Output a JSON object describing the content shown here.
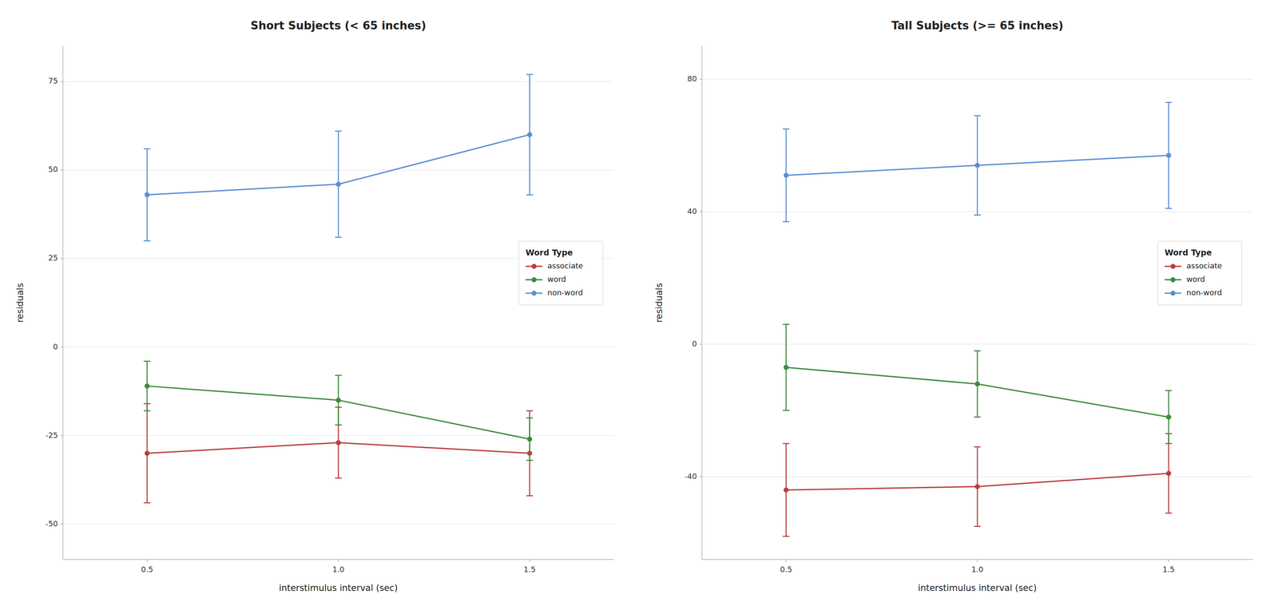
{
  "chart_data": [
    {
      "type": "line",
      "title": "Short Subjects (< 65 inches)",
      "x_label": "interstimulus interval (sec)",
      "y_label": "residuals",
      "legend_title": "Word Type",
      "x": [
        0.5,
        1.0,
        1.5
      ],
      "xlim": [
        0.28,
        1.72
      ],
      "xticks": [
        0.5,
        {
          "value": 1.0,
          "label": "1.0"
        },
        1.5
      ],
      "ylim": [
        -60,
        85
      ],
      "yticks": [
        -50,
        -25,
        0,
        25,
        50,
        75
      ],
      "grid": true,
      "legend": "right",
      "marker": "circle",
      "series": [
        {
          "name": "associate",
          "color": "#B94040",
          "values": [
            -30.0,
            -27.0,
            -30.0
          ],
          "errors": [
            14.0,
            10.0,
            12.0
          ]
        },
        {
          "name": "word",
          "color": "#3D8B3D",
          "values": [
            -11.0,
            -15.0,
            -26.0
          ],
          "errors": [
            7.0,
            7.0,
            6.0
          ]
        },
        {
          "name": "non-word",
          "color": "#5B8FD4",
          "values": [
            43.0,
            46.0,
            60.0
          ],
          "errors": [
            13.0,
            15.0,
            17.0
          ]
        }
      ]
    },
    {
      "type": "line",
      "title": "Tall Subjects (>= 65 inches)",
      "x_label": "interstimulus interval (sec)",
      "y_label": "residuals",
      "legend_title": "Word Type",
      "x": [
        0.5,
        1.0,
        1.5
      ],
      "xlim": [
        0.28,
        1.72
      ],
      "xticks": [
        0.5,
        {
          "value": 1.0,
          "label": "1.0"
        },
        1.5
      ],
      "ylim": [
        -65,
        90
      ],
      "yticks": [
        -40,
        0,
        40,
        80
      ],
      "grid": true,
      "legend": "right",
      "marker": "circle",
      "series": [
        {
          "name": "associate",
          "color": "#B94040",
          "values": [
            -44.0,
            -43.0,
            -39.0
          ],
          "errors": [
            14.0,
            12.0,
            12.0
          ]
        },
        {
          "name": "word",
          "color": "#3D8B3D",
          "values": [
            -7.0,
            -12.0,
            -22.0
          ],
          "errors": [
            13.0,
            10.0,
            8.0
          ]
        },
        {
          "name": "non-word",
          "color": "#5B8FD4",
          "values": [
            51.0,
            54.0,
            57.0
          ],
          "errors": [
            14.0,
            15.0,
            16.0
          ]
        }
      ]
    }
  ]
}
